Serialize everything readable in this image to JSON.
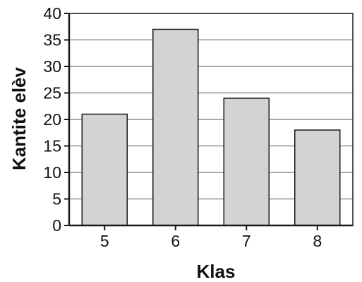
{
  "chart_data": {
    "type": "bar",
    "title": "",
    "xlabel": "Klas",
    "ylabel": "Kantite elèv",
    "categories": [
      "5",
      "6",
      "7",
      "8"
    ],
    "values": [
      21,
      37,
      24,
      18
    ],
    "ylim": [
      0,
      40
    ],
    "yticks": [
      0,
      5,
      10,
      15,
      20,
      25,
      30,
      35,
      40
    ],
    "grid": true,
    "legend": "none",
    "bar_color": "#d3d3d3",
    "edge_color": "#1a1a1a"
  }
}
